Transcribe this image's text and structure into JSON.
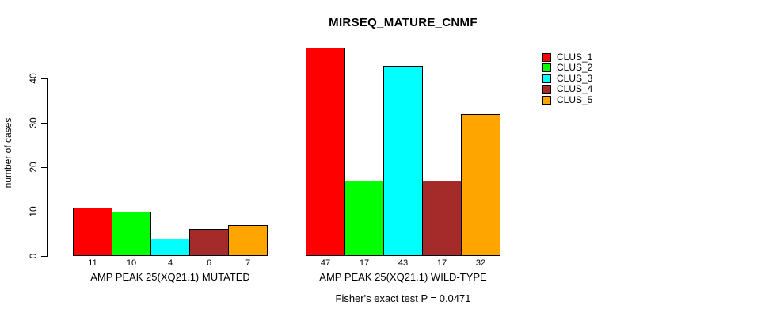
{
  "title": "MIRSEQ_MATURE_CNMF",
  "ylabel": "number of cases",
  "footer": "Fisher's exact test P = 0.0471",
  "legend": [
    {
      "label": "CLUS_1",
      "color": "#FF0000"
    },
    {
      "label": "CLUS_2",
      "color": "#00FF00"
    },
    {
      "label": "CLUS_3",
      "color": "#00FFFF"
    },
    {
      "label": "CLUS_4",
      "color": "#A52A2A"
    },
    {
      "label": "CLUS_5",
      "color": "#FFA500"
    }
  ],
  "chart_data": {
    "type": "bar",
    "title": "MIRSEQ_MATURE_CNMF",
    "xlabel": "",
    "ylabel": "number of cases",
    "ylim": [
      0,
      47
    ],
    "yticks": [
      0,
      10,
      20,
      30,
      40
    ],
    "grid": false,
    "legend_position": "top-right",
    "series": [
      "CLUS_1",
      "CLUS_2",
      "CLUS_3",
      "CLUS_4",
      "CLUS_5"
    ],
    "colors": [
      "#FF0000",
      "#00FF00",
      "#00FFFF",
      "#A52A2A",
      "#FFA500"
    ],
    "groups": [
      {
        "label": "AMP PEAK 25(XQ21.1) MUTATED",
        "values": [
          11,
          10,
          4,
          6,
          7
        ]
      },
      {
        "label": "AMP PEAK 25(XQ21.1) WILD-TYPE",
        "values": [
          47,
          17,
          43,
          17,
          32
        ]
      }
    ],
    "bar_value_labels": true,
    "annotation": "Fisher's exact test P = 0.0471"
  }
}
